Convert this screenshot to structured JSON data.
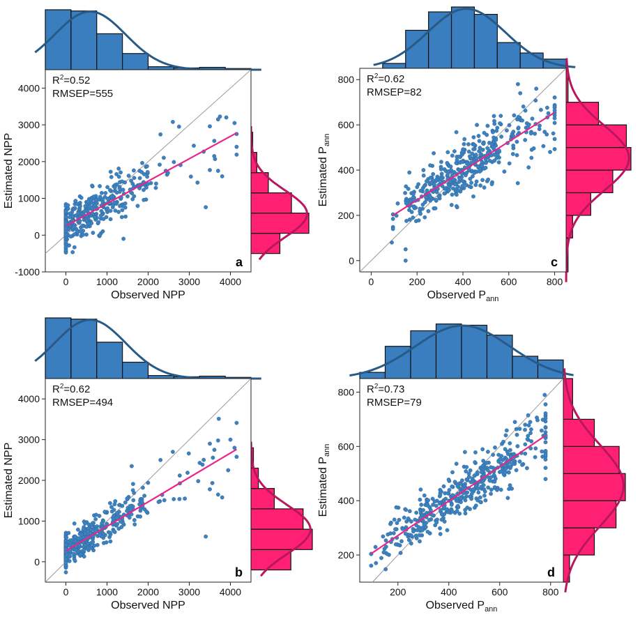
{
  "chart_data": [
    {
      "type": "scatter",
      "panel": "a",
      "panel_label": "a",
      "xlabel": {
        "main": "Observed NPP",
        "sub": ""
      },
      "ylabel": {
        "main": "Estimated NPP",
        "sub": ""
      },
      "xlim": [
        -500,
        4500
      ],
      "ylim": [
        -1000,
        4500
      ],
      "xticks": [
        0,
        1000,
        2000,
        3000,
        4000
      ],
      "yticks": [
        -1000,
        0,
        1000,
        2000,
        3000,
        4000
      ],
      "stats": {
        "r2_prefix": "R",
        "r2_sup": "2",
        "r2_value": "=0.52",
        "rmsep": "RMSEP=555"
      },
      "fit_line": {
        "x": [
          0,
          4150
        ],
        "y": [
          250,
          2780
        ]
      },
      "points_summary": {
        "n": 430,
        "x_range": [
          0,
          4150
        ],
        "slope": 0.61,
        "intercept": 250,
        "resid_sd": 420
      },
      "points_sample": [
        [
          3500,
          2960
        ],
        [
          3700,
          3150
        ],
        [
          3900,
          3200
        ],
        [
          4100,
          3050
        ],
        [
          3400,
          760
        ],
        [
          3500,
          1770
        ],
        [
          3700,
          1750
        ],
        [
          3800,
          1600
        ],
        [
          2600,
          3080
        ],
        [
          2300,
          2740
        ],
        [
          2750,
          2950
        ],
        [
          1400,
          -100
        ]
      ],
      "x_hist": {
        "bin_edges": [
          -500,
          125,
          750,
          1375,
          2000,
          2625,
          3250,
          3875,
          4500
        ],
        "heights": [
          1.0,
          0.98,
          0.6,
          0.27,
          0.05,
          0.03,
          0.04,
          0.02
        ]
      },
      "y_hist": {
        "bin_edges": [
          -500,
          50,
          600,
          1150,
          1700,
          2250,
          2800
        ],
        "heights": [
          0.5,
          1.0,
          0.7,
          0.3,
          0.1,
          0.03
        ]
      },
      "series_colors": {
        "points": "#3d82c0",
        "fit": "#e8268a",
        "x_hist": "#3a7ebf",
        "y_hist": "#ff1f73",
        "x_curve": "#285a87",
        "y_curve": "#b8175f"
      }
    },
    {
      "type": "scatter",
      "panel": "b",
      "panel_label": "b",
      "xlabel": {
        "main": "Observed NPP",
        "sub": ""
      },
      "ylabel": {
        "main": "Estimated NPP",
        "sub": ""
      },
      "xlim": [
        -500,
        4500
      ],
      "ylim": [
        -500,
        4500
      ],
      "xticks": [
        0,
        1000,
        2000,
        3000,
        4000
      ],
      "yticks": [
        0,
        1000,
        2000,
        3000,
        4000
      ],
      "stats": {
        "r2_prefix": "R",
        "r2_sup": "2",
        "r2_value": "=0.62",
        "rmsep": "RMSEP=494"
      },
      "fit_line": {
        "x": [
          0,
          4150
        ],
        "y": [
          270,
          2760
        ]
      },
      "points_summary": {
        "n": 430,
        "x_range": [
          0,
          4150
        ],
        "slope": 0.6,
        "intercept": 270,
        "resid_sd": 330
      },
      "points_sample": [
        [
          4000,
          3000
        ],
        [
          3500,
          2900
        ],
        [
          3700,
          2980
        ],
        [
          4100,
          2800
        ],
        [
          3400,
          620
        ],
        [
          3500,
          1780
        ],
        [
          3700,
          1650
        ],
        [
          3800,
          1580
        ],
        [
          2600,
          2700
        ],
        [
          2300,
          2500
        ],
        [
          1600,
          2350
        ]
      ],
      "x_hist": {
        "bin_edges": [
          -500,
          125,
          750,
          1375,
          2000,
          2625,
          3250,
          3875,
          4500
        ],
        "heights": [
          1.0,
          0.98,
          0.6,
          0.27,
          0.05,
          0.03,
          0.04,
          0.02
        ]
      },
      "y_hist": {
        "bin_edges": [
          -200,
          300,
          800,
          1300,
          1800,
          2300,
          2800
        ],
        "heights": [
          0.65,
          1.0,
          0.85,
          0.38,
          0.12,
          0.04
        ]
      },
      "series_colors": {
        "points": "#3d82c0",
        "fit": "#e8268a",
        "x_hist": "#3a7ebf",
        "y_hist": "#ff1f73",
        "x_curve": "#285a87",
        "y_curve": "#b8175f"
      }
    },
    {
      "type": "scatter",
      "panel": "c",
      "panel_label": "c",
      "xlabel": {
        "main": "Observed P",
        "sub": "ann"
      },
      "ylabel": {
        "main": "Estimated P",
        "sub": "ann"
      },
      "xlim": [
        -50,
        850
      ],
      "ylim": [
        -50,
        850
      ],
      "xticks": [
        0,
        200,
        400,
        600,
        800
      ],
      "yticks": [
        0,
        200,
        400,
        600,
        800
      ],
      "stats": {
        "r2_prefix": "R",
        "r2_sup": "2",
        "r2_value": "=0.62",
        "rmsep": "RMSEP=82"
      },
      "fit_line": {
        "x": [
          95,
          800
        ],
        "y": [
          200,
          655
        ]
      },
      "points_summary": {
        "n": 420,
        "x_range": [
          95,
          800
        ],
        "slope": 0.645,
        "intercept": 139,
        "resid_sd": 80
      },
      "points_sample": [
        [
          640,
          780
        ],
        [
          650,
          740
        ],
        [
          720,
          760
        ],
        [
          700,
          490
        ],
        [
          150,
          0
        ],
        [
          150,
          50
        ],
        [
          90,
          80
        ],
        [
          780,
          480
        ]
      ],
      "x_hist": {
        "bin_edges": [
          50,
          150,
          250,
          350,
          450,
          550,
          650,
          750,
          850
        ],
        "heights": [
          0.08,
          0.62,
          0.92,
          1.0,
          0.88,
          0.42,
          0.25,
          0.15
        ]
      },
      "y_hist": {
        "bin_edges": [
          -50,
          100,
          200,
          300,
          400,
          500,
          600,
          700,
          850
        ],
        "heights": [
          0.03,
          0.1,
          0.38,
          0.72,
          1.0,
          0.93,
          0.5,
          0.03
        ]
      },
      "series_colors": {
        "points": "#3d82c0",
        "fit": "#e8268a",
        "x_hist": "#3a7ebf",
        "y_hist": "#ff1f73",
        "x_curve": "#285a87",
        "y_curve": "#b8175f"
      }
    },
    {
      "type": "scatter",
      "panel": "d",
      "panel_label": "d",
      "xlabel": {
        "main": "Observed P",
        "sub": "ann"
      },
      "ylabel": {
        "main": "Estimated P",
        "sub": "ann"
      },
      "xlim": [
        50,
        850
      ],
      "ylim": [
        100,
        850
      ],
      "xticks": [
        200,
        400,
        600,
        800
      ],
      "yticks": [
        200,
        400,
        600,
        800
      ],
      "stats": {
        "r2_prefix": "R",
        "r2_sup": "2",
        "r2_value": "=0.73",
        "rmsep": "RMSEP=79"
      },
      "fit_line": {
        "x": [
          95,
          780
        ],
        "y": [
          205,
          640
        ]
      },
      "points_summary": {
        "n": 430,
        "x_range": [
          95,
          780
        ],
        "slope": 0.635,
        "intercept": 145,
        "resid_sd": 58
      },
      "points_sample": [
        [
          720,
          690
        ],
        [
          700,
          680
        ],
        [
          660,
          690
        ],
        [
          780,
          480
        ],
        [
          580,
          470
        ]
      ],
      "x_hist": {
        "bin_edges": [
          50,
          150,
          250,
          350,
          450,
          550,
          650,
          750,
          850
        ],
        "heights": [
          0.1,
          0.52,
          0.77,
          0.88,
          0.86,
          0.7,
          0.36,
          0.3
        ]
      },
      "y_hist": {
        "bin_edges": [
          100,
          200,
          300,
          400,
          500,
          600,
          700,
          850
        ],
        "heights": [
          0.1,
          0.5,
          0.85,
          1.0,
          0.9,
          0.5,
          0.15
        ]
      },
      "series_colors": {
        "points": "#3d82c0",
        "fit": "#e8268a",
        "x_hist": "#3a7ebf",
        "y_hist": "#ff1f73",
        "x_curve": "#285a87",
        "y_curve": "#b8175f"
      }
    }
  ]
}
